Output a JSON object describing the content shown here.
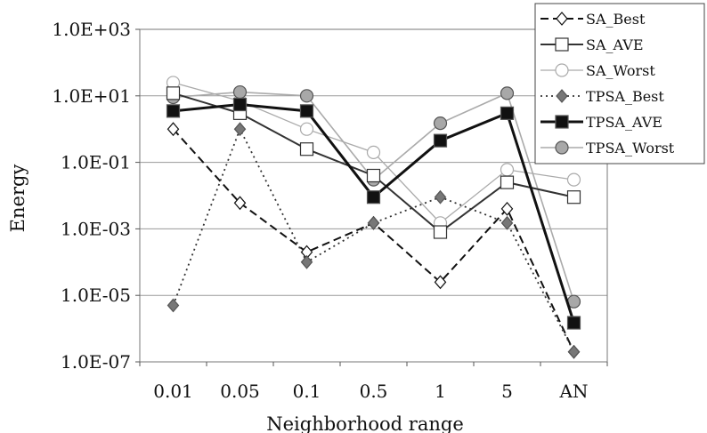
{
  "chart_data": {
    "type": "line",
    "title": "",
    "xlabel": "Neighborhood range",
    "ylabel": "Energy",
    "y_scale": "log",
    "ylim": [
      1e-07,
      1000
    ],
    "y_ticks": [
      {
        "value": 1e-07,
        "label": "1.0E-07"
      },
      {
        "value": 1e-05,
        "label": "1.0E-05"
      },
      {
        "value": 0.001,
        "label": "1.0E-03"
      },
      {
        "value": 0.1,
        "label": "1.0E-01"
      },
      {
        "value": 10,
        "label": "1.0E+01"
      },
      {
        "value": 1000,
        "label": "1.0E+03"
      }
    ],
    "categories": [
      "0.01",
      "0.05",
      "0.1",
      "0.5",
      "1",
      "5",
      "AN"
    ],
    "grid": "horizontal",
    "legend_position": "top-right",
    "series": [
      {
        "name": "SA_Best",
        "values": [
          1.0,
          0.006,
          0.0002,
          0.0015,
          2.5e-05,
          0.004,
          2e-07
        ],
        "color": "#111111",
        "line": "dashed",
        "width": 2,
        "marker": "diamond-open"
      },
      {
        "name": "SA_AVE",
        "values": [
          12,
          3,
          0.25,
          0.04,
          0.0008,
          0.025,
          0.009
        ],
        "color": "#333333",
        "line": "solid",
        "width": 2,
        "marker": "square-open"
      },
      {
        "name": "SA_Worst",
        "values": [
          25,
          7,
          1.0,
          0.2,
          0.0015,
          0.06,
          0.03
        ],
        "color": "#aaaaaa",
        "line": "solid",
        "width": 1.3,
        "marker": "circle-open"
      },
      {
        "name": "TPSA_Best",
        "values": [
          5e-06,
          1.0,
          0.0001,
          0.0015,
          0.009,
          0.0015,
          2e-07
        ],
        "color": "#333333",
        "line": "dotted",
        "width": 1.8,
        "marker": "diamond-filled"
      },
      {
        "name": "TPSA_AVE",
        "values": [
          3.5,
          5.5,
          3.5,
          0.009,
          0.45,
          3,
          1.5e-06
        ],
        "color": "#111111",
        "line": "solid",
        "width": 3,
        "marker": "square-filled"
      },
      {
        "name": "TPSA_Worst",
        "values": [
          9,
          13,
          10,
          0.03,
          1.5,
          12,
          6.5e-06
        ],
        "color": "#aaaaaa",
        "line": "solid",
        "width": 1.6,
        "marker": "circle-filled"
      }
    ]
  }
}
